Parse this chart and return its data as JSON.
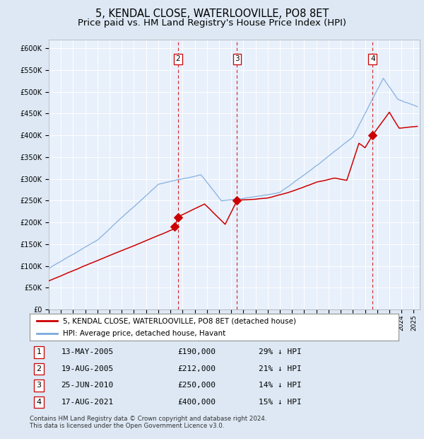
{
  "title1": "5, KENDAL CLOSE, WATERLOOVILLE, PO8 8ET",
  "title2": "Price paid vs. HM Land Registry's House Price Index (HPI)",
  "xlim_start": 1995.0,
  "xlim_end": 2025.5,
  "ylim": [
    0,
    620000
  ],
  "yticks": [
    0,
    50000,
    100000,
    150000,
    200000,
    250000,
    300000,
    350000,
    400000,
    450000,
    500000,
    550000,
    600000
  ],
  "background_color": "#dde8f4",
  "plot_bg": "#e8f0fb",
  "grid_color": "#ffffff",
  "red_line_color": "#cc0000",
  "blue_line_color": "#7aaadd",
  "sale_color": "#cc0000",
  "dashed_line_color": "#cc0000",
  "legend_line1": "5, KENDAL CLOSE, WATERLOOVILLE, PO8 8ET (detached house)",
  "legend_line2": "HPI: Average price, detached house, Havant",
  "sales": [
    {
      "label": "1",
      "year": 2005.36,
      "price": 190000,
      "note": "13-MAY-2005",
      "pct": "29% ↓ HPI"
    },
    {
      "label": "2",
      "year": 2005.63,
      "price": 212000,
      "note": "19-AUG-2005",
      "pct": "21% ↓ HPI"
    },
    {
      "label": "3",
      "year": 2010.48,
      "price": 250000,
      "note": "25-JUN-2010",
      "pct": "14% ↓ HPI"
    },
    {
      "label": "4",
      "year": 2021.63,
      "price": 400000,
      "note": "17-AUG-2021",
      "pct": "15% ↓ HPI"
    }
  ],
  "copyright_text": "Contains HM Land Registry data © Crown copyright and database right 2024.\nThis data is licensed under the Open Government Licence v3.0.",
  "title_fontsize": 10.5,
  "subtitle_fontsize": 9.5,
  "tick_fontsize": 7,
  "legend_fontsize": 8,
  "annotation_fontsize": 8
}
